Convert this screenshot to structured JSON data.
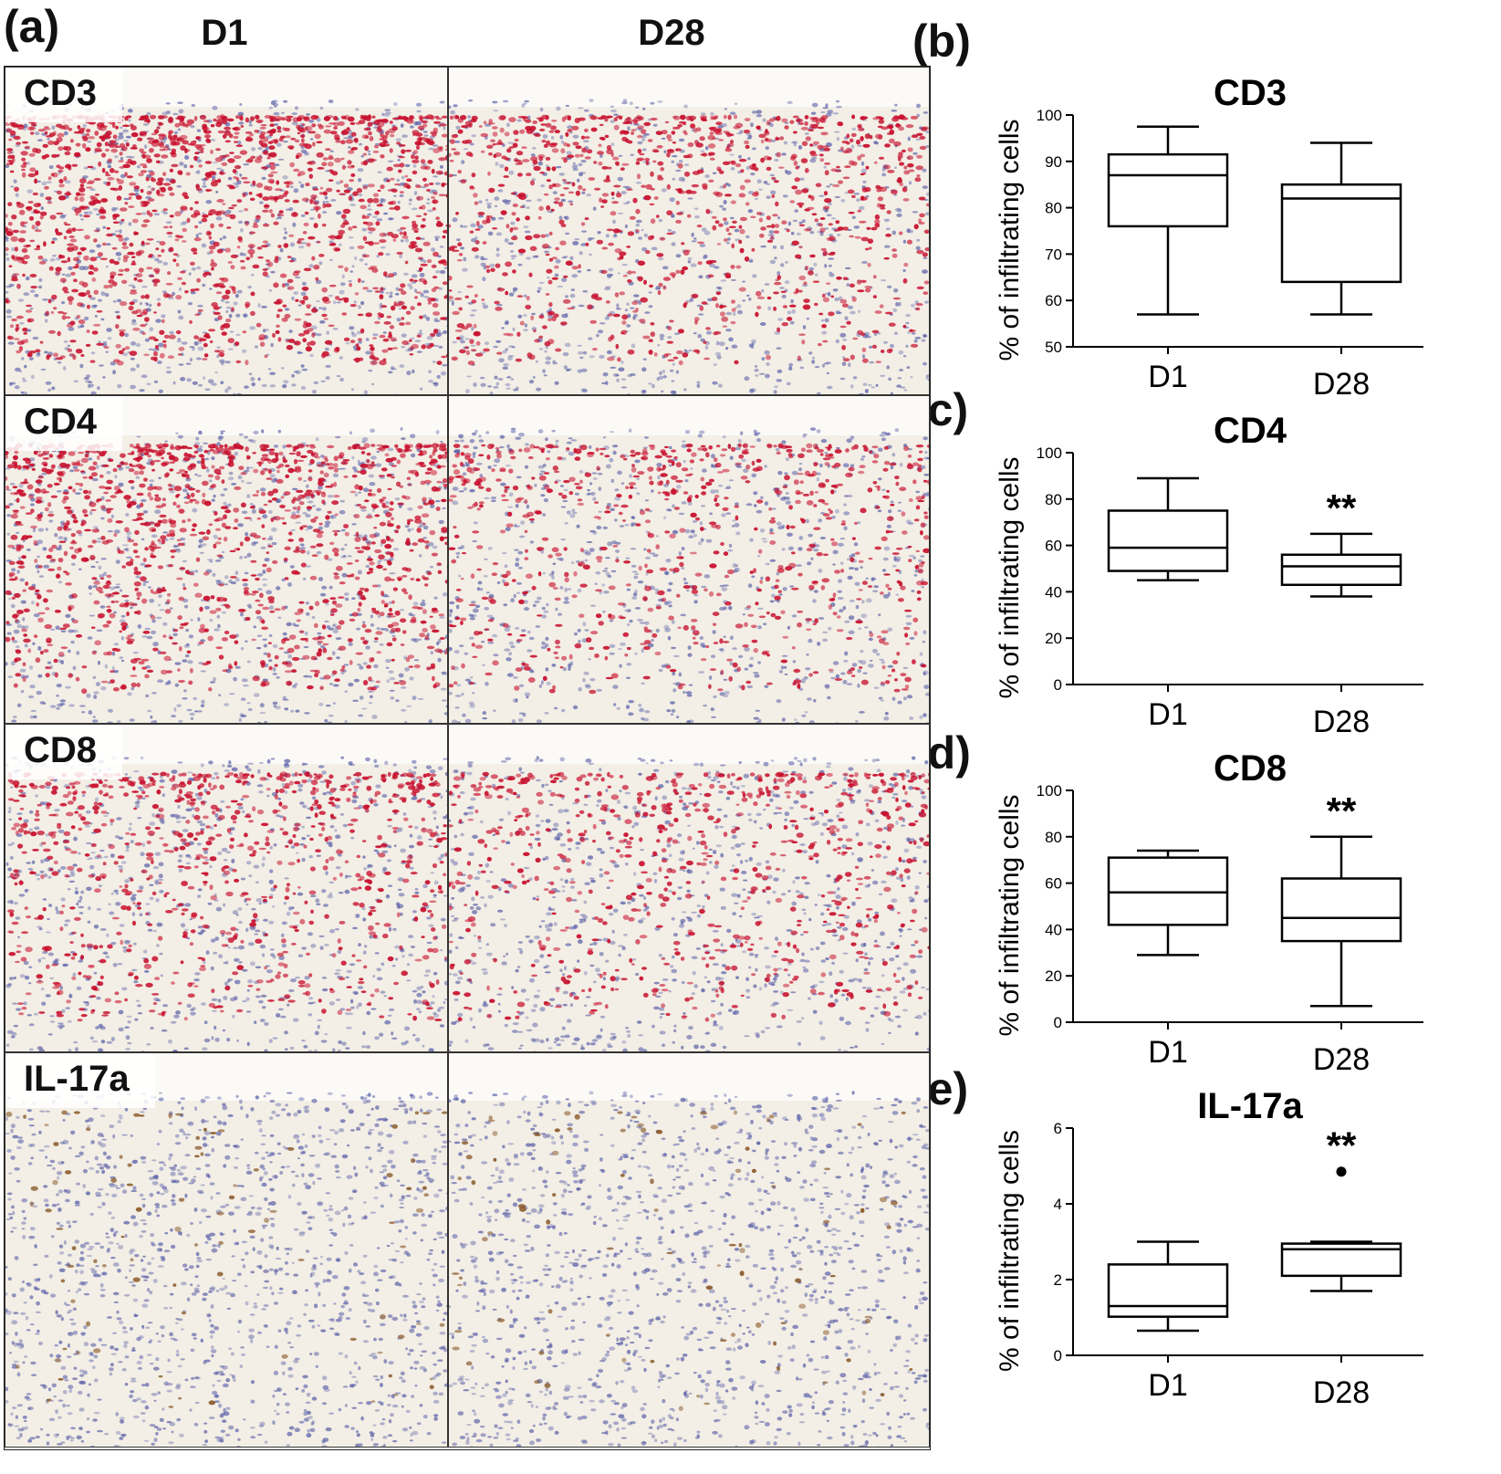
{
  "panel_letters": [
    "(a)",
    "(b)",
    "(c)",
    "(d)",
    "(e)"
  ],
  "columns": [
    "D1",
    "D28"
  ],
  "rows": [
    {
      "label": "CD3",
      "stain": "red",
      "density": [
        0.85,
        0.55
      ]
    },
    {
      "label": "CD4",
      "stain": "red",
      "density": [
        0.7,
        0.4
      ]
    },
    {
      "label": "CD8",
      "stain": "red",
      "density": [
        0.45,
        0.4
      ]
    },
    {
      "label": "IL-17a",
      "stain": "brown",
      "density": [
        0.05,
        0.05
      ]
    }
  ],
  "colors": {
    "red_stain": "#c8102e",
    "blue_nuclei": "#5a5fa8",
    "brown_stain": "#8a5a2b",
    "tissue_bg": "#f3efe6"
  },
  "chart_data": [
    {
      "type": "boxplot",
      "panel": "(b)",
      "title": "CD3",
      "ylabel": "% of infiltrating cells",
      "categories": [
        "D1",
        "D28"
      ],
      "ylim": [
        50,
        100
      ],
      "yticks": [
        50,
        60,
        70,
        80,
        90,
        100
      ],
      "boxes": [
        {
          "min": 57,
          "q1": 76,
          "median": 87,
          "q3": 91.5,
          "max": 97.5,
          "sig": ""
        },
        {
          "min": 57,
          "q1": 64,
          "median": 82,
          "q3": 85,
          "max": 94,
          "sig": ""
        }
      ]
    },
    {
      "type": "boxplot",
      "panel": "(c)",
      "title": "CD4",
      "ylabel": "% of infiltrating cells",
      "categories": [
        "D1",
        "D28"
      ],
      "ylim": [
        0,
        100
      ],
      "yticks": [
        0,
        20,
        40,
        60,
        80,
        100
      ],
      "boxes": [
        {
          "min": 45,
          "q1": 49,
          "median": 59,
          "q3": 75,
          "max": 89,
          "sig": ""
        },
        {
          "min": 38,
          "q1": 43,
          "median": 51,
          "q3": 56,
          "max": 65,
          "sig": "**"
        }
      ]
    },
    {
      "type": "boxplot",
      "panel": "(d)",
      "title": "CD8",
      "ylabel": "% of infiltrating cells",
      "categories": [
        "D1",
        "D28"
      ],
      "ylim": [
        0,
        100
      ],
      "yticks": [
        0,
        20,
        40,
        60,
        80,
        100
      ],
      "boxes": [
        {
          "min": 29,
          "q1": 42,
          "median": 56,
          "q3": 71,
          "max": 74,
          "sig": ""
        },
        {
          "min": 7,
          "q1": 35,
          "median": 45,
          "q3": 62,
          "max": 80,
          "sig": "**"
        }
      ]
    },
    {
      "type": "boxplot",
      "panel": "(e)",
      "title": "IL-17a",
      "ylabel": "% of infiltrating cells",
      "categories": [
        "D1",
        "D28"
      ],
      "ylim": [
        0,
        6
      ],
      "yticks": [
        0,
        2,
        4,
        6
      ],
      "boxes": [
        {
          "min": 0.65,
          "q1": 1.02,
          "median": 1.3,
          "q3": 2.4,
          "max": 3.0,
          "sig": "",
          "outliers": []
        },
        {
          "min": 1.7,
          "q1": 2.1,
          "median": 2.8,
          "q3": 2.95,
          "max": 3.0,
          "sig": "**",
          "outliers": [
            4.85
          ]
        }
      ]
    }
  ]
}
